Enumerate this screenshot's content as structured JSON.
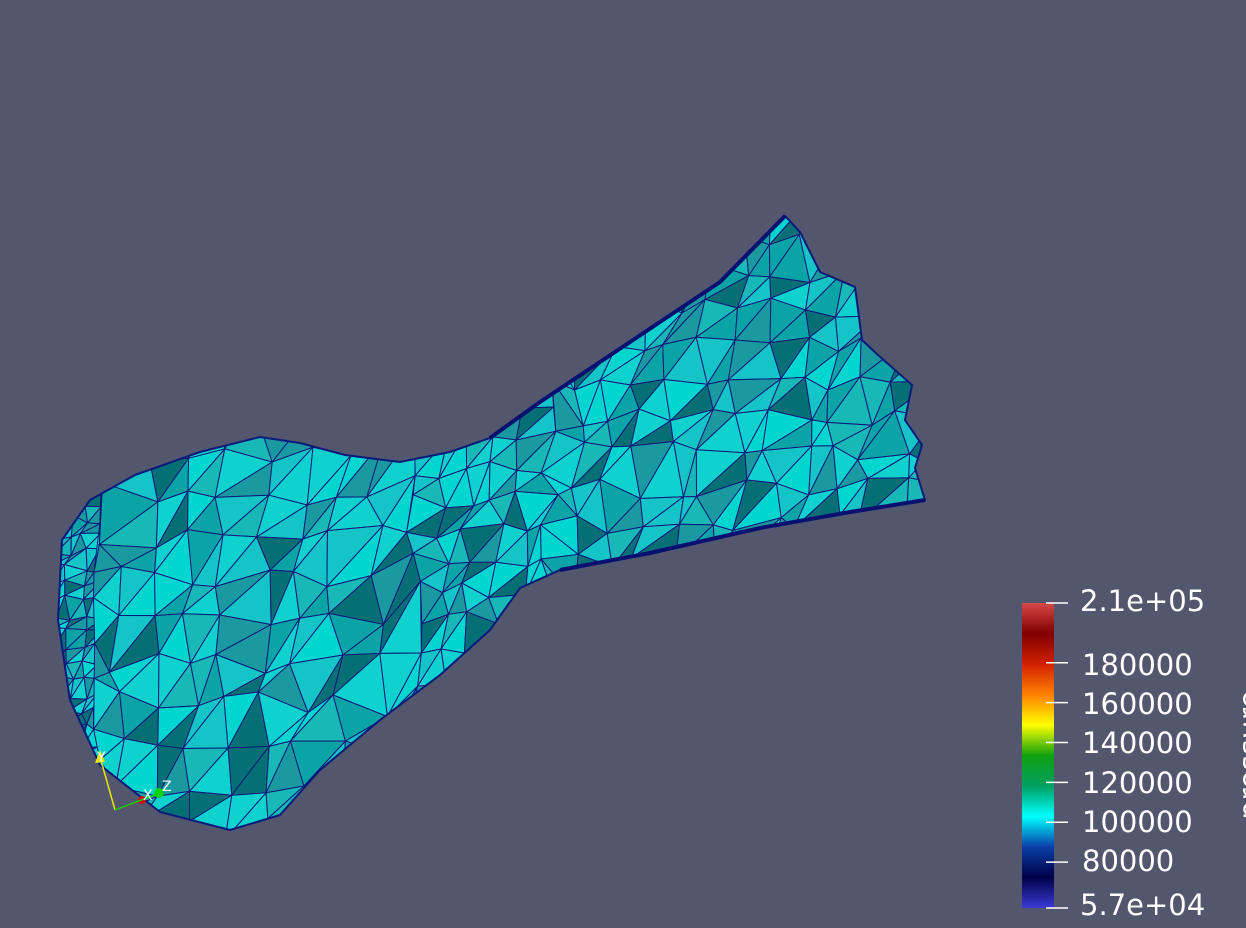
{
  "scene": {
    "background_color": "#52576e",
    "field": "pressure",
    "mesh_edge_color": "#0a1a7a",
    "face_colors": [
      "#00d6d0",
      "#17b8b6",
      "#0aa3a6",
      "#14c4c6",
      "#066f76",
      "#0fd2cf",
      "#1a9aa0"
    ]
  },
  "legend": {
    "title": "pressure",
    "max_label": "2.1e+05",
    "min_label": "5.7e+04",
    "tick_labels": [
      "180000",
      "160000",
      "140000",
      "120000",
      "100000",
      "80000"
    ],
    "range": [
      57000,
      210000
    ],
    "ticks": [
      180000,
      160000,
      140000,
      120000,
      100000,
      80000
    ],
    "colormap": [
      "#3b3bd6",
      "#000048",
      "#0a3ea8",
      "#00ffff",
      "#00a060",
      "#10a010",
      "#ffff00",
      "#ff8000",
      "#d02000",
      "#800000",
      "#d84848"
    ]
  },
  "axes": {
    "x_label": "X",
    "y_label": "Y",
    "z_label": "Z",
    "x_color": "#d01010",
    "y_color": "#e8e800",
    "z_color": "#10d010"
  }
}
